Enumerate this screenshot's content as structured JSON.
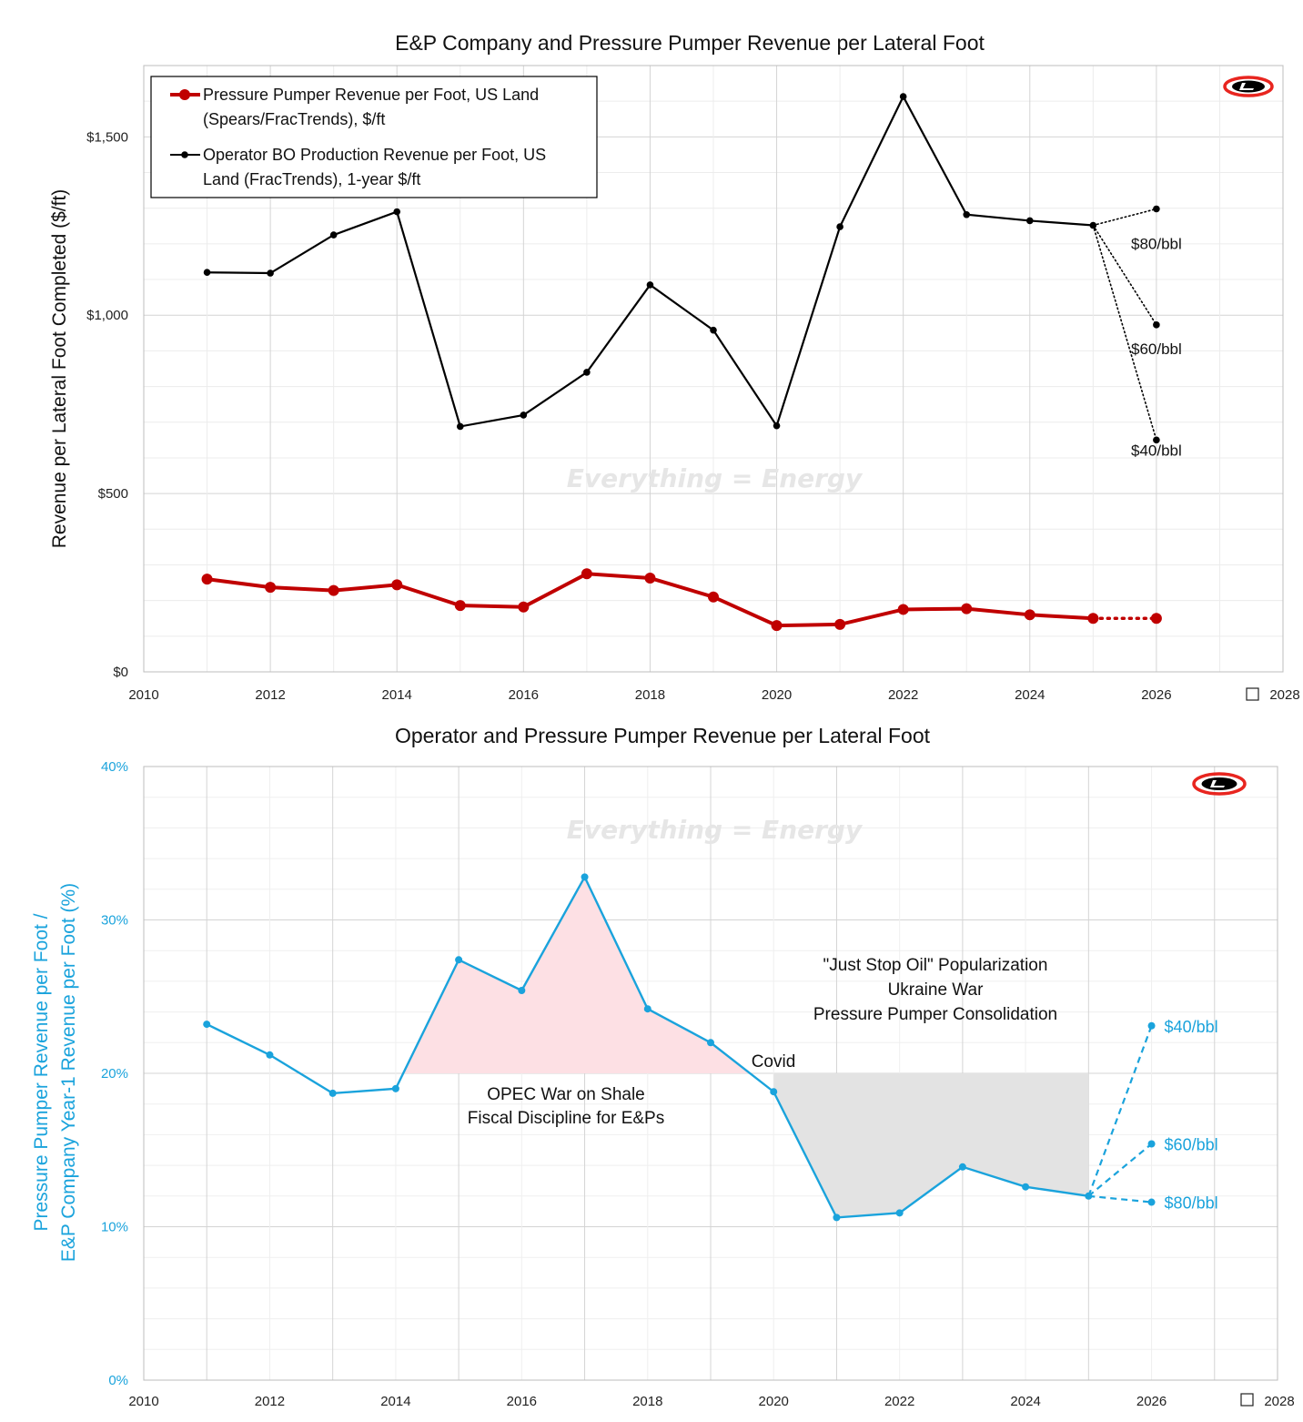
{
  "colors": {
    "pumper": "#c00000",
    "operator": "#000000",
    "ratio": "#1aa3dc",
    "pink_fill": "#fde0e4",
    "gray_fill": "#e3e3e3",
    "logo_red": "#e8251f"
  },
  "watermark": "Everything = Energy",
  "logo_icon": "liberty-logo-icon",
  "chart_data": [
    {
      "type": "line",
      "title": "E&P Company and Pressure Pumper Revenue per Lateral Foot",
      "xlabel": "",
      "ylabel": "Revenue per Lateral Foot Completed ($/ft)",
      "xlim": [
        2010,
        2028
      ],
      "ylim": [
        0,
        1700
      ],
      "x_ticks": [
        2010,
        2012,
        2014,
        2016,
        2018,
        2020,
        2022,
        2024,
        2026,
        2028
      ],
      "x_tick_labels": [
        "2010",
        "2012",
        "2014",
        "2016",
        "2018",
        "2020",
        "2022",
        "2024",
        "2026",
        "2028"
      ],
      "y_ticks": [
        0,
        500,
        1000,
        1500
      ],
      "y_tick_labels": [
        "$0",
        "$500",
        "$1,000",
        "$1,500"
      ],
      "legend": [
        "Pressure Pumper Revenue per Foot, US Land (Spears/FracTrends), $/ft",
        "Operator BO Production Revenue per Foot, US Land (FracTrends), 1-year $/ft"
      ],
      "legend_lines": [
        [
          "Pressure Pumper Revenue per Foot, US Land",
          "(Spears/FracTrends), $/ft"
        ],
        [
          "Operator BO Production Revenue per Foot, US",
          "Land (FracTrends), 1-year $/ft"
        ]
      ],
      "legend_position": "top-left",
      "series": [
        {
          "name": "Pressure Pumper Revenue per Foot, US Land (Spears/FracTrends), $/ft",
          "x": [
            2011,
            2012,
            2013,
            2014,
            2015,
            2016,
            2017,
            2018,
            2019,
            2020,
            2021,
            2022,
            2023,
            2024,
            2025
          ],
          "values": [
            260,
            237,
            228,
            244,
            186,
            182,
            275,
            263,
            210,
            130,
            133,
            175,
            177,
            160,
            150
          ]
        },
        {
          "name": "Operator BO Production Revenue per Foot, US Land (FracTrends), 1-year $/ft",
          "x": [
            2011,
            2012,
            2013,
            2014,
            2015,
            2016,
            2017,
            2018,
            2019,
            2020,
            2021,
            2022,
            2023,
            2024,
            2025
          ],
          "values": [
            1120,
            1118,
            1225,
            1290,
            688,
            720,
            840,
            1085,
            958,
            690,
            1248,
            1613,
            1282,
            1265,
            1252
          ]
        }
      ],
      "projections": [
        {
          "series": "Pressure Pumper Revenue per Foot",
          "from_x": 2025,
          "from_value": 150,
          "x": 2026,
          "value": 150
        },
        {
          "label": "$80/bbl",
          "from_x": 2025,
          "from_value": 1252,
          "x": 2026,
          "value": 1298
        },
        {
          "label": "$60/bbl",
          "from_x": 2025,
          "from_value": 1252,
          "x": 2026,
          "value": 973
        },
        {
          "label": "$40/bbl",
          "from_x": 2025,
          "from_value": 1252,
          "x": 2026,
          "value": 650
        }
      ]
    },
    {
      "type": "line",
      "title": "Operator and Pressure Pumper Revenue per Lateral Foot",
      "xlabel": "",
      "ylabel_lines": [
        "Pressure Pumper Revenue per Foot /",
        "E&P Company Year-1 Revenue per Foot (%)"
      ],
      "xlim": [
        2010,
        2028
      ],
      "ylim": [
        0,
        40
      ],
      "x_ticks": [
        2010,
        2012,
        2014,
        2016,
        2018,
        2020,
        2022,
        2024,
        2026,
        2028
      ],
      "x_tick_labels": [
        "2010",
        "2012",
        "2014",
        "2016",
        "2018",
        "2020",
        "2022",
        "2024",
        "2026",
        "2028"
      ],
      "y_ticks": [
        0,
        10,
        20,
        30,
        40
      ],
      "y_tick_labels": [
        "0%",
        "10%",
        "20%",
        "30%",
        "40%"
      ],
      "reference_level": 20,
      "series": [
        {
          "name": "Pressure Pumper Revenue per Foot / E&P Company Year-1 Revenue per Foot (%)",
          "x": [
            2011,
            2012,
            2013,
            2014,
            2015,
            2016,
            2017,
            2018,
            2019,
            2020,
            2021,
            2022,
            2023,
            2024,
            2025
          ],
          "values": [
            23.2,
            21.2,
            18.7,
            19.0,
            27.4,
            25.4,
            32.8,
            24.2,
            22.0,
            18.8,
            10.6,
            10.9,
            13.9,
            12.6,
            12.0
          ]
        }
      ],
      "shaded_regions": [
        {
          "color": "pink",
          "x_start": 2014,
          "x_end": 2020,
          "above": 20
        },
        {
          "color": "gray",
          "x_start": 2020,
          "x_end": 2025,
          "below": 20
        }
      ],
      "projections": [
        {
          "label": "$40/bbl",
          "from_x": 2025,
          "from_value": 12.0,
          "x": 2026,
          "value": 23.1
        },
        {
          "label": "$60/bbl",
          "from_x": 2025,
          "from_value": 12.0,
          "x": 2026,
          "value": 15.4
        },
        {
          "label": "$80/bbl",
          "from_x": 2025,
          "from_value": 12.0,
          "x": 2026,
          "value": 11.6
        }
      ],
      "annotations": {
        "covid": "Covid",
        "opec_lines": [
          "OPEC War on Shale",
          "Fiscal Discipline for E&Ps"
        ],
        "jso_lines": [
          "\"Just Stop Oil\" Popularization",
          "Ukraine War",
          "Pressure Pumper Consolidation"
        ]
      }
    }
  ]
}
